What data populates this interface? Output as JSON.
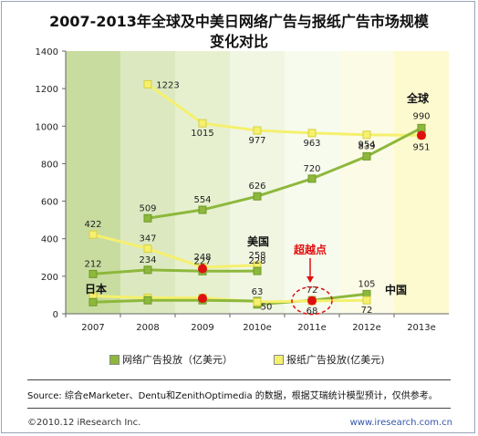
{
  "title_line1": "2007-2013年全球及中美日网络广告与报纸广告市场规模",
  "title_line2": "变化对比",
  "source": "Source: 综合eMarketer、Dentu和ZenithOptimedia 的数据，根据艾瑞统计模型预计，仅供参考。",
  "footer_left": "©2010.12 iResearch Inc.",
  "footer_right": "www.iresearch.com.cn",
  "legend": [
    {
      "label": "网络广告投放（亿美元）",
      "color": "#8db83c"
    },
    {
      "label": "报纸广告投放(亿美元)",
      "color": "#f5f06e"
    }
  ],
  "annotations": {
    "global": "全球",
    "us": "美国",
    "japan": "日本",
    "china": "中国",
    "crossover": "超越点"
  },
  "colors": {
    "online": "#8db83c",
    "newspaper": "#f5f06e",
    "crossover_dot": "#e01010",
    "crossover_text": "#e01010"
  },
  "chart_data": {
    "type": "line",
    "categories": [
      "2007",
      "2008",
      "2009",
      "2010e",
      "2011e",
      "2012e",
      "2013e"
    ],
    "ylim": [
      0,
      1400
    ],
    "yticks": [
      0,
      200,
      400,
      600,
      800,
      1000,
      1200,
      1400
    ],
    "series": [
      {
        "region": "全球",
        "kind": "报纸",
        "values": [
          null,
          1223,
          1015,
          977,
          963,
          954,
          951
        ],
        "labels": [
          "",
          "1223",
          "1015",
          "977",
          "963",
          "954",
          "951"
        ]
      },
      {
        "region": "全球",
        "kind": "网络",
        "values": [
          null,
          509,
          554,
          626,
          720,
          839,
          990
        ],
        "labels": [
          "",
          "509",
          "554",
          "626",
          "720",
          "839",
          "990"
        ]
      },
      {
        "region": "美国",
        "kind": "报纸",
        "values": [
          422,
          347,
          248,
          258,
          null,
          null,
          null
        ],
        "labels": [
          "422",
          "347",
          "248",
          "258",
          "",
          "",
          ""
        ]
      },
      {
        "region": "美国",
        "kind": "网络",
        "values": [
          212,
          234,
          227,
          228,
          null,
          null,
          null
        ],
        "labels": [
          "212",
          "234",
          "227",
          "228",
          "",
          "",
          ""
        ]
      },
      {
        "region": "日本",
        "kind": "报纸",
        "values": [
          95,
          85,
          85,
          63,
          null,
          null,
          null
        ],
        "labels": [
          "",
          "",
          "",
          "63",
          "",
          "",
          ""
        ]
      },
      {
        "region": "日本",
        "kind": "网络",
        "values": [
          62,
          72,
          72,
          68,
          null,
          null,
          null
        ],
        "labels": [
          "",
          "",
          "",
          "",
          "",
          "",
          ""
        ]
      },
      {
        "region": "中国",
        "kind": "网络",
        "values": [
          null,
          null,
          null,
          50,
          72,
          105,
          null
        ],
        "labels": [
          "",
          "",
          "",
          "50",
          "72",
          "105",
          ""
        ]
      },
      {
        "region": "中国",
        "kind": "报纸",
        "values": [
          null,
          null,
          null,
          63,
          68,
          72,
          null
        ],
        "labels": [
          "",
          "",
          "",
          "",
          "68",
          "72",
          ""
        ]
      }
    ],
    "crossover_points": [
      {
        "region": "全球",
        "x": "2013e",
        "y": 951
      },
      {
        "region": "美国",
        "x": "2009",
        "y": 240
      },
      {
        "region": "日本",
        "x": "2009",
        "y": 82
      },
      {
        "region": "中国",
        "x": "2011e",
        "y": 70
      }
    ]
  }
}
